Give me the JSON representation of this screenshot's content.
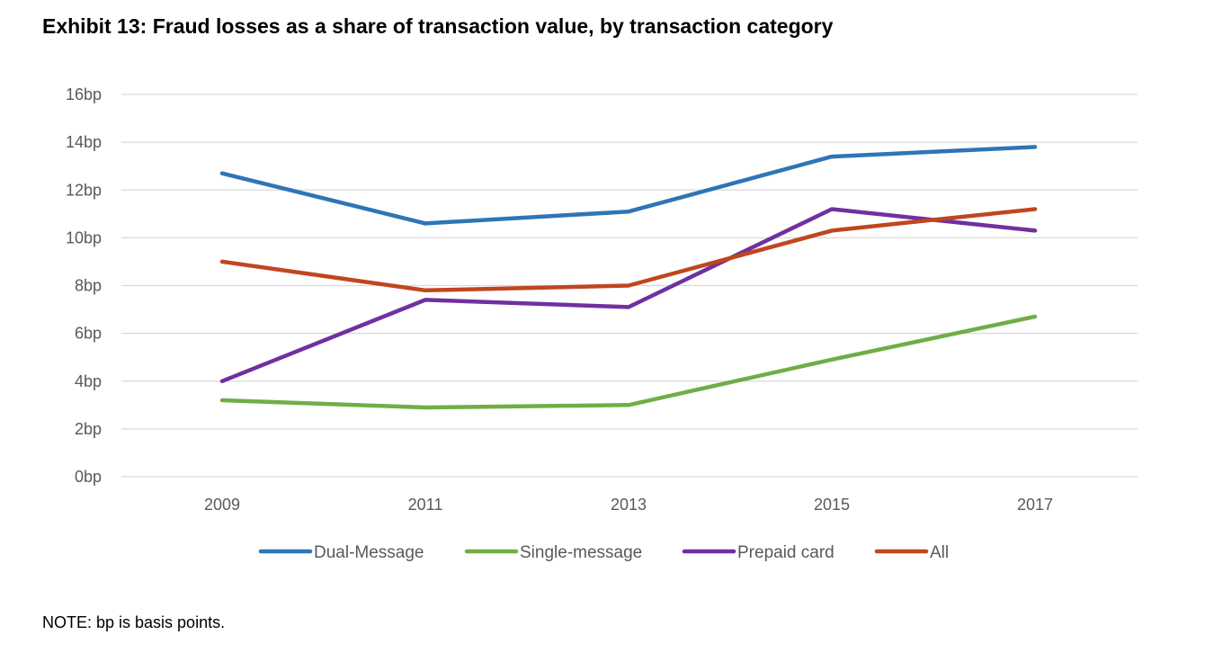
{
  "title": "Exhibit 13: Fraud losses as a share of transaction value, by transaction category",
  "note": "NOTE: bp is basis points.",
  "chart_data": {
    "type": "line",
    "title": "Exhibit 13: Fraud losses as a share of transaction value, by transaction category",
    "xlabel": "",
    "ylabel": "",
    "x": [
      "2009",
      "2011",
      "2013",
      "2015",
      "2017"
    ],
    "ylim": [
      0,
      16
    ],
    "y_ticks": [
      0,
      2,
      4,
      6,
      8,
      10,
      12,
      14,
      16
    ],
    "y_tick_suffix": "bp",
    "grid": true,
    "legend_position": "bottom",
    "series": [
      {
        "name": "Dual-Message",
        "color": "#2E75B6",
        "values": [
          12.7,
          10.6,
          11.1,
          13.4,
          13.8
        ]
      },
      {
        "name": "Single-message",
        "color": "#70AD47",
        "values": [
          3.2,
          2.9,
          3.0,
          4.9,
          6.7
        ]
      },
      {
        "name": "Prepaid card",
        "color": "#7030A0",
        "values": [
          4.0,
          7.4,
          7.1,
          11.2,
          10.3
        ]
      },
      {
        "name": "All",
        "color": "#C0461F",
        "values": [
          9.0,
          7.8,
          8.0,
          10.3,
          11.2
        ]
      }
    ]
  }
}
